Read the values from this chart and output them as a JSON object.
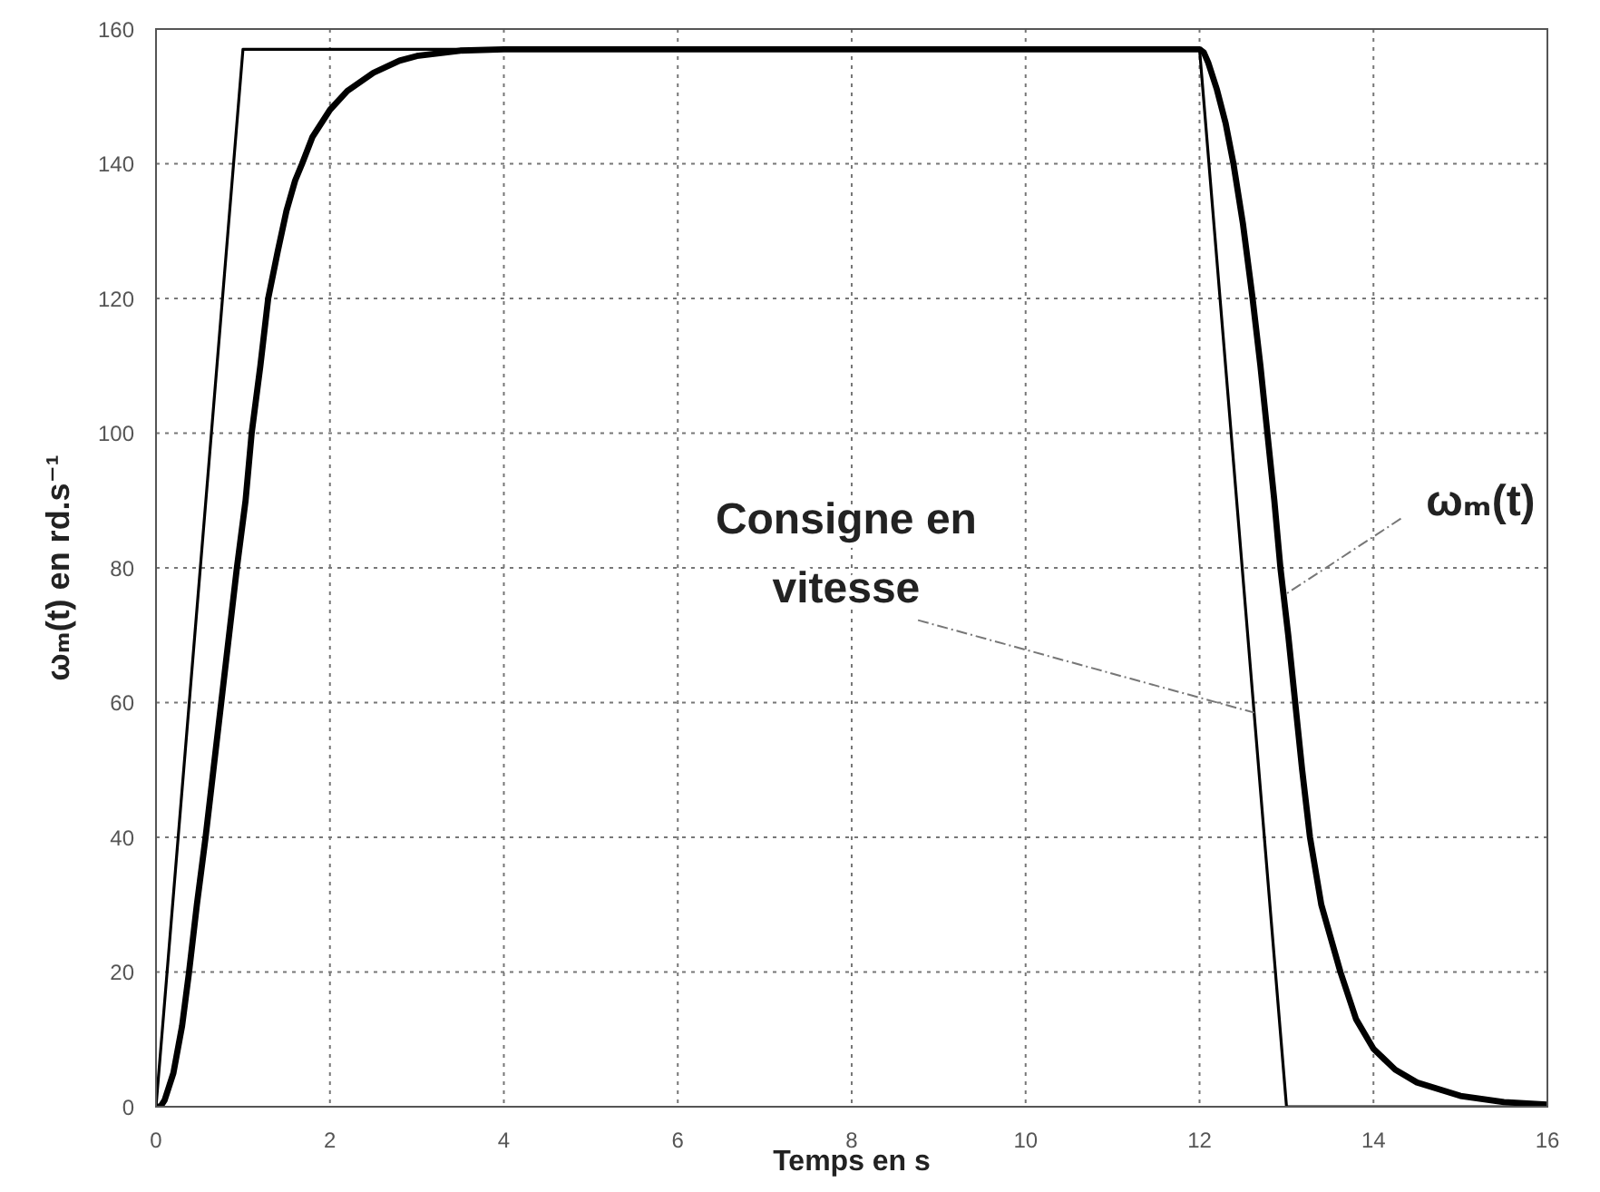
{
  "chart_data": {
    "type": "line",
    "xlabel": "Temps en s",
    "ylabel": "ωₘ(t) en rd.s⁻¹",
    "xlim": [
      0,
      16
    ],
    "xticks": [
      0,
      2,
      4,
      6,
      8,
      10,
      12,
      14,
      16
    ],
    "ylim": [
      0,
      160
    ],
    "yticks": [
      0,
      20,
      40,
      60,
      80,
      100,
      120,
      140,
      160
    ],
    "grid": true,
    "series": [
      {
        "color": "#000000",
        "x": [
          0,
          1,
          12,
          13,
          16
        ],
        "values": [
          0,
          157,
          157,
          0,
          0
        ]
      },
      {
        "color": "#000000",
        "x": [
          0,
          0.05,
          0.1,
          0.2,
          0.3,
          0.38,
          0.47,
          0.57,
          0.66,
          0.75,
          0.84,
          0.93,
          1.03,
          1.1,
          1.2,
          1.29,
          1.4,
          1.5,
          1.6,
          1.68,
          1.8,
          2.0,
          2.2,
          2.5,
          2.8,
          3.0,
          3.5,
          4.0,
          12.0,
          12.05,
          12.1,
          12.2,
          12.3,
          12.39,
          12.5,
          12.61,
          12.7,
          12.78,
          12.86,
          12.93,
          13.02,
          13.1,
          13.18,
          13.27,
          13.4,
          13.62,
          13.8,
          14.0,
          14.25,
          14.5,
          15.0,
          15.5,
          16.0
        ],
        "values": [
          0,
          0,
          1,
          5,
          12,
          20,
          30,
          40,
          50,
          60,
          70,
          80,
          90,
          100,
          110,
          120,
          127,
          133,
          137.5,
          140,
          144,
          148,
          150.8,
          153.5,
          155.3,
          156,
          156.8,
          157,
          157,
          156.5,
          155,
          151,
          146,
          140,
          131,
          120,
          110,
          100,
          90,
          80,
          70,
          60,
          50,
          40,
          30,
          20,
          13,
          8.6,
          5.5,
          3.6,
          1.6,
          0.7,
          0.3
        ]
      }
    ],
    "annotations": [
      {
        "text": "Consigne en vitesse",
        "x": 12.63,
        "y": 58.5
      },
      {
        "text": "ωₘ(t)",
        "x": 12.98,
        "y": 76
      }
    ]
  }
}
